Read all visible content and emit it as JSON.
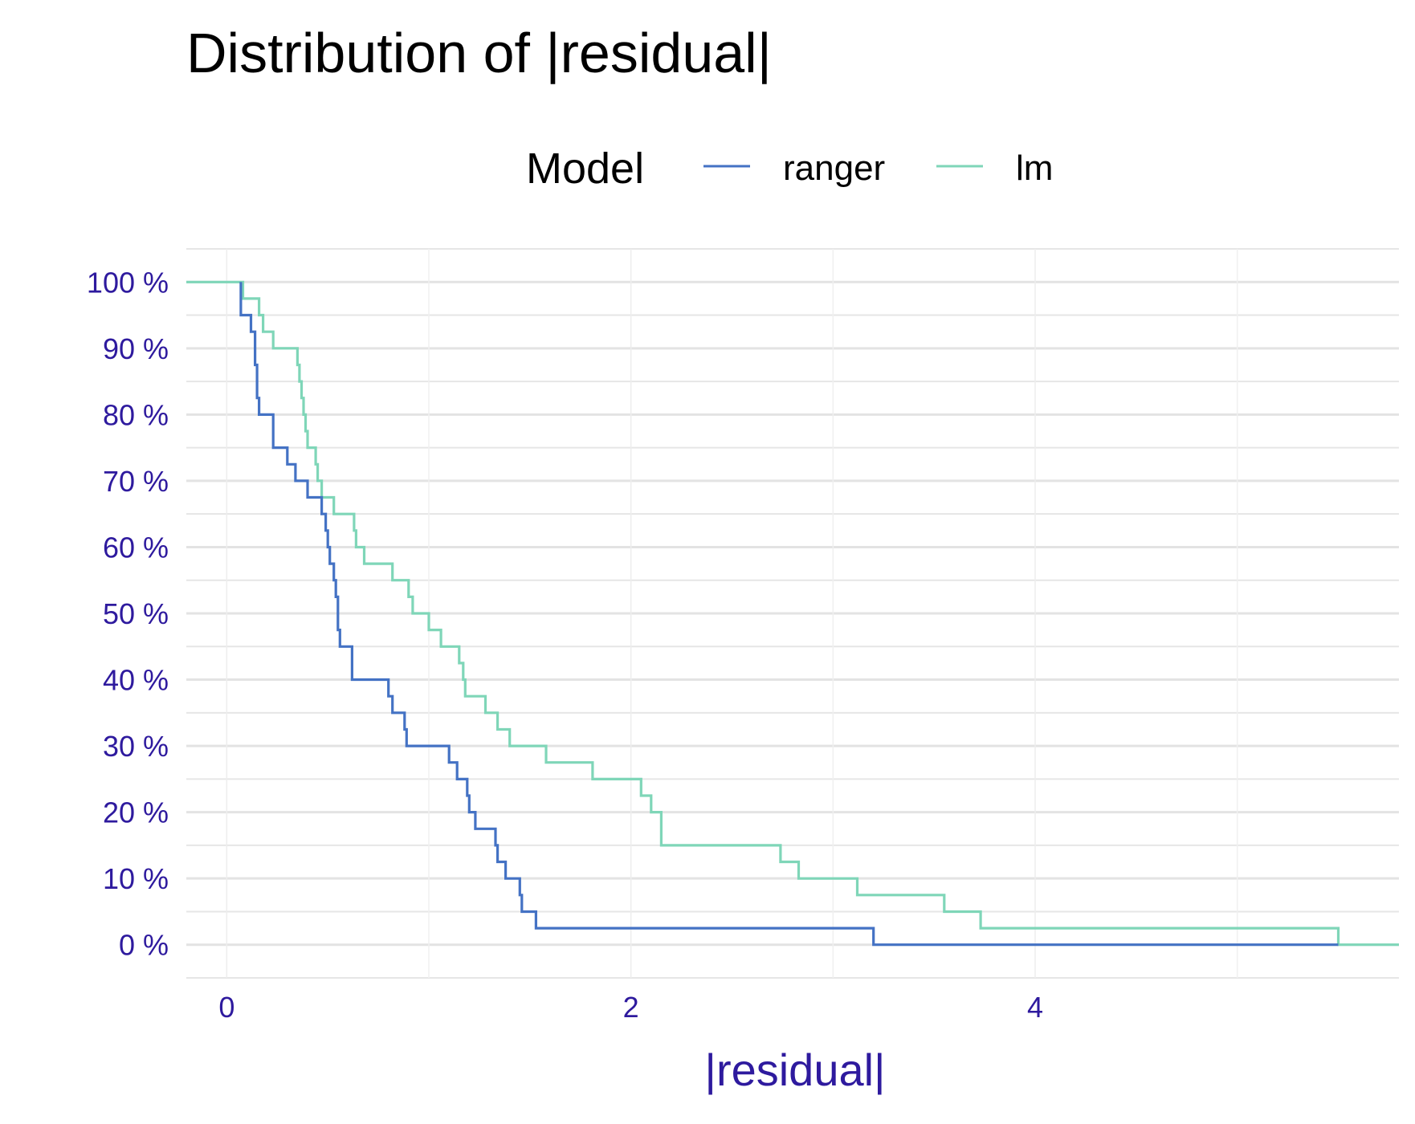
{
  "chart_data": {
    "type": "line",
    "title": "Distribution of |residual|",
    "xlabel": "|residual|",
    "ylabel": "",
    "xlim": [
      -0.2,
      5.8
    ],
    "ylim": [
      -0.05,
      1.05
    ],
    "x_ticks": [
      {
        "value": 0,
        "label": "0"
      },
      {
        "value": 2,
        "label": "2"
      },
      {
        "value": 4,
        "label": "4"
      }
    ],
    "y_ticks": [
      {
        "value": 1.0,
        "label": "100 %"
      },
      {
        "value": 0.9,
        "label": "90 %"
      },
      {
        "value": 0.8,
        "label": "80 %"
      },
      {
        "value": 0.7,
        "label": "70 %"
      },
      {
        "value": 0.6,
        "label": "60 %"
      },
      {
        "value": 0.5,
        "label": "50 %"
      },
      {
        "value": 0.4,
        "label": "40 %"
      },
      {
        "value": 0.3,
        "label": "30 %"
      },
      {
        "value": 0.2,
        "label": "20 %"
      },
      {
        "value": 0.1,
        "label": "10 %"
      },
      {
        "value": 0.0,
        "label": "0 %"
      }
    ],
    "grid": true,
    "legend": {
      "title": "Model",
      "position": "top"
    },
    "series": [
      {
        "name": "ranger",
        "color": "#4472C4",
        "steps": [
          [
            0.07,
            1.0
          ],
          [
            0.07,
            0.975
          ],
          [
            0.07,
            0.95
          ],
          [
            0.12,
            0.925
          ],
          [
            0.14,
            0.9
          ],
          [
            0.14,
            0.875
          ],
          [
            0.15,
            0.85
          ],
          [
            0.15,
            0.825
          ],
          [
            0.16,
            0.8
          ],
          [
            0.23,
            0.75
          ],
          [
            0.3,
            0.725
          ],
          [
            0.34,
            0.7
          ],
          [
            0.4,
            0.675
          ],
          [
            0.47,
            0.65
          ],
          [
            0.49,
            0.625
          ],
          [
            0.5,
            0.6
          ],
          [
            0.51,
            0.575
          ],
          [
            0.53,
            0.55
          ],
          [
            0.54,
            0.525
          ],
          [
            0.55,
            0.5
          ],
          [
            0.55,
            0.475
          ],
          [
            0.56,
            0.45
          ],
          [
            0.62,
            0.4
          ],
          [
            0.8,
            0.375
          ],
          [
            0.82,
            0.35
          ],
          [
            0.88,
            0.325
          ],
          [
            0.89,
            0.3
          ],
          [
            1.1,
            0.275
          ],
          [
            1.14,
            0.25
          ],
          [
            1.19,
            0.225
          ],
          [
            1.2,
            0.2
          ],
          [
            1.23,
            0.175
          ],
          [
            1.33,
            0.15
          ],
          [
            1.34,
            0.125
          ],
          [
            1.38,
            0.1
          ],
          [
            1.45,
            0.075
          ],
          [
            1.46,
            0.05
          ],
          [
            1.53,
            0.025
          ],
          [
            3.2,
            0.0
          ]
        ],
        "x_end": 5.5
      },
      {
        "name": "lm",
        "color": "#7FD6B8",
        "steps": [
          [
            -0.2,
            1.0
          ],
          [
            0.08,
            0.975
          ],
          [
            0.16,
            0.95
          ],
          [
            0.18,
            0.925
          ],
          [
            0.23,
            0.9
          ],
          [
            0.35,
            0.875
          ],
          [
            0.36,
            0.85
          ],
          [
            0.37,
            0.825
          ],
          [
            0.38,
            0.8
          ],
          [
            0.39,
            0.775
          ],
          [
            0.4,
            0.75
          ],
          [
            0.44,
            0.725
          ],
          [
            0.45,
            0.7
          ],
          [
            0.47,
            0.675
          ],
          [
            0.53,
            0.65
          ],
          [
            0.63,
            0.625
          ],
          [
            0.64,
            0.6
          ],
          [
            0.68,
            0.575
          ],
          [
            0.82,
            0.55
          ],
          [
            0.9,
            0.525
          ],
          [
            0.92,
            0.5
          ],
          [
            1.0,
            0.475
          ],
          [
            1.06,
            0.45
          ],
          [
            1.15,
            0.425
          ],
          [
            1.17,
            0.4
          ],
          [
            1.18,
            0.375
          ],
          [
            1.28,
            0.35
          ],
          [
            1.34,
            0.325
          ],
          [
            1.4,
            0.3
          ],
          [
            1.58,
            0.275
          ],
          [
            1.81,
            0.25
          ],
          [
            2.05,
            0.225
          ],
          [
            2.1,
            0.2
          ],
          [
            2.15,
            0.15
          ],
          [
            2.74,
            0.125
          ],
          [
            2.83,
            0.1
          ],
          [
            3.12,
            0.075
          ],
          [
            3.55,
            0.05
          ],
          [
            3.73,
            0.025
          ],
          [
            5.5,
            0.0
          ]
        ],
        "x_end": 5.8
      }
    ]
  }
}
